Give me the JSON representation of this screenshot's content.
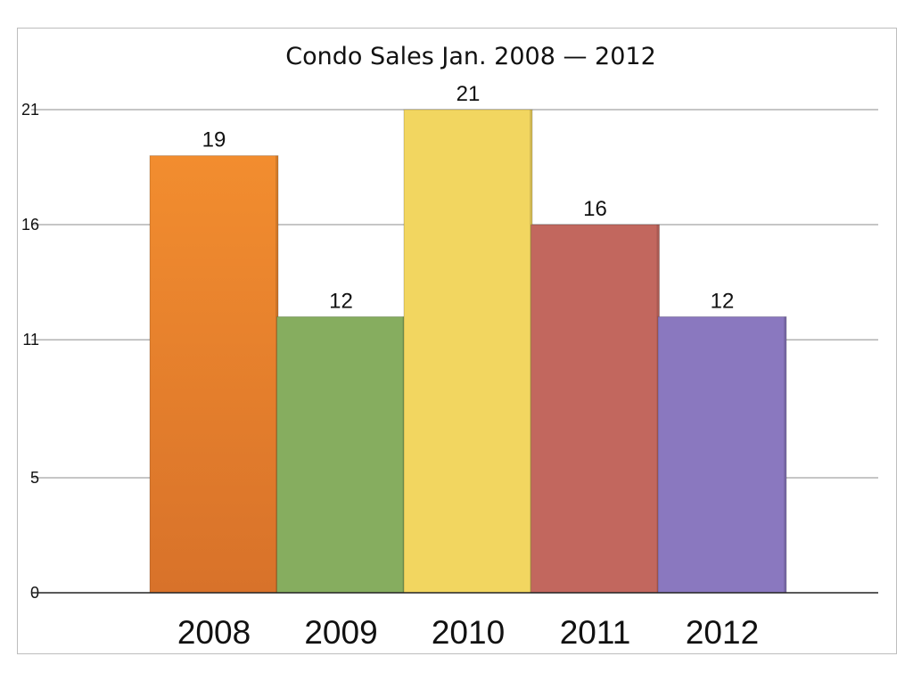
{
  "chart_data": {
    "type": "bar",
    "title": "Condo Sales Jan. 2008 — 2012",
    "xlabel": "",
    "ylabel": "",
    "categories": [
      "2008",
      "2009",
      "2010",
      "2011",
      "2012"
    ],
    "values": [
      19,
      12,
      21,
      16,
      12
    ],
    "data_labels": [
      "19",
      "12",
      "21",
      "16",
      "12"
    ],
    "yticks": [
      0,
      5,
      11,
      16,
      21
    ],
    "ylim": [
      0,
      21
    ],
    "grid": true,
    "legend": "none",
    "colors": [
      "#e8812a",
      "#86ad5f",
      "#f2d660",
      "#c2675e",
      "#8a78bf"
    ]
  }
}
